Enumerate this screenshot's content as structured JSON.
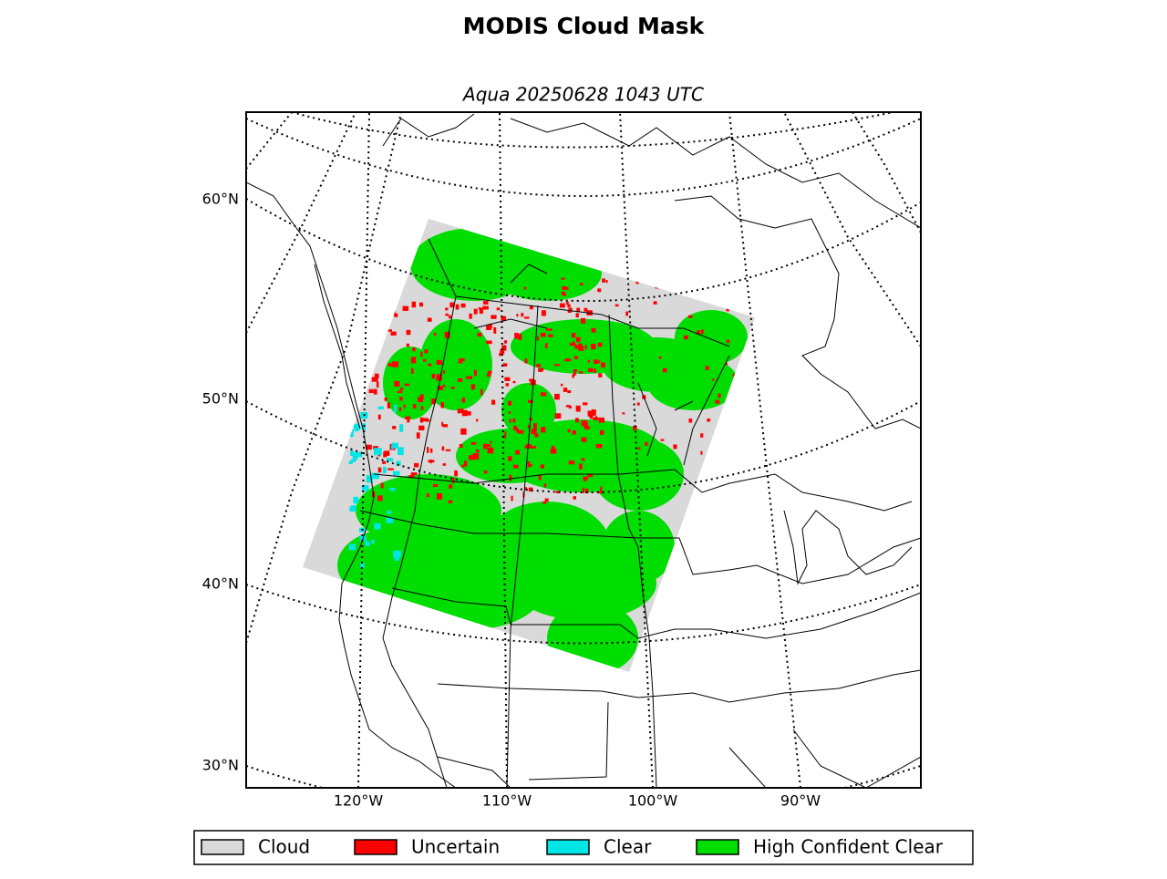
{
  "title": "MODIS Cloud Mask",
  "subtitle": "Aqua 20250628 1043 UTC",
  "lat_labels": [
    "60°N",
    "50°N",
    "40°N",
    "30°N"
  ],
  "lon_labels": [
    "120°W",
    "110°W",
    "100°W",
    "90°W"
  ],
  "legend": [
    {
      "label": "Cloud",
      "color": "#d9d9d9"
    },
    {
      "label": "Uncertain",
      "color": "#ff0000"
    },
    {
      "label": "Clear",
      "color": "#00e5e5"
    },
    {
      "label": "High Confident Clear",
      "color": "#00dd00"
    }
  ]
}
